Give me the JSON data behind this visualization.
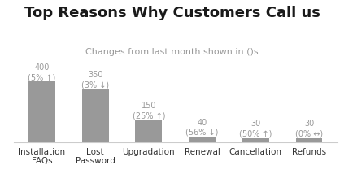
{
  "title": "Top Reasons Why Customers Call us",
  "subtitle": "Changes from last month shown in ()s",
  "categories": [
    "Installation\nFAQs",
    "Lost\nPassword",
    "Upgradation",
    "Renewal",
    "Cancellation",
    "Refunds"
  ],
  "values": [
    400,
    350,
    150,
    40,
    30,
    30
  ],
  "bar_color": "#999999",
  "bar_labels": [
    "400\n(5% ↑)",
    "350\n(3% ↓)",
    "150\n(25% ↑)",
    "40\n(56% ↓)",
    "30\n(50% ↑)",
    "30\n(0% ↔)"
  ],
  "label_color": "#999999",
  "title_fontsize": 13,
  "subtitle_fontsize": 8,
  "bar_label_fontsize": 7,
  "xtick_fontsize": 7.5,
  "background_color": "#ffffff",
  "ylim": [
    0,
    480
  ]
}
